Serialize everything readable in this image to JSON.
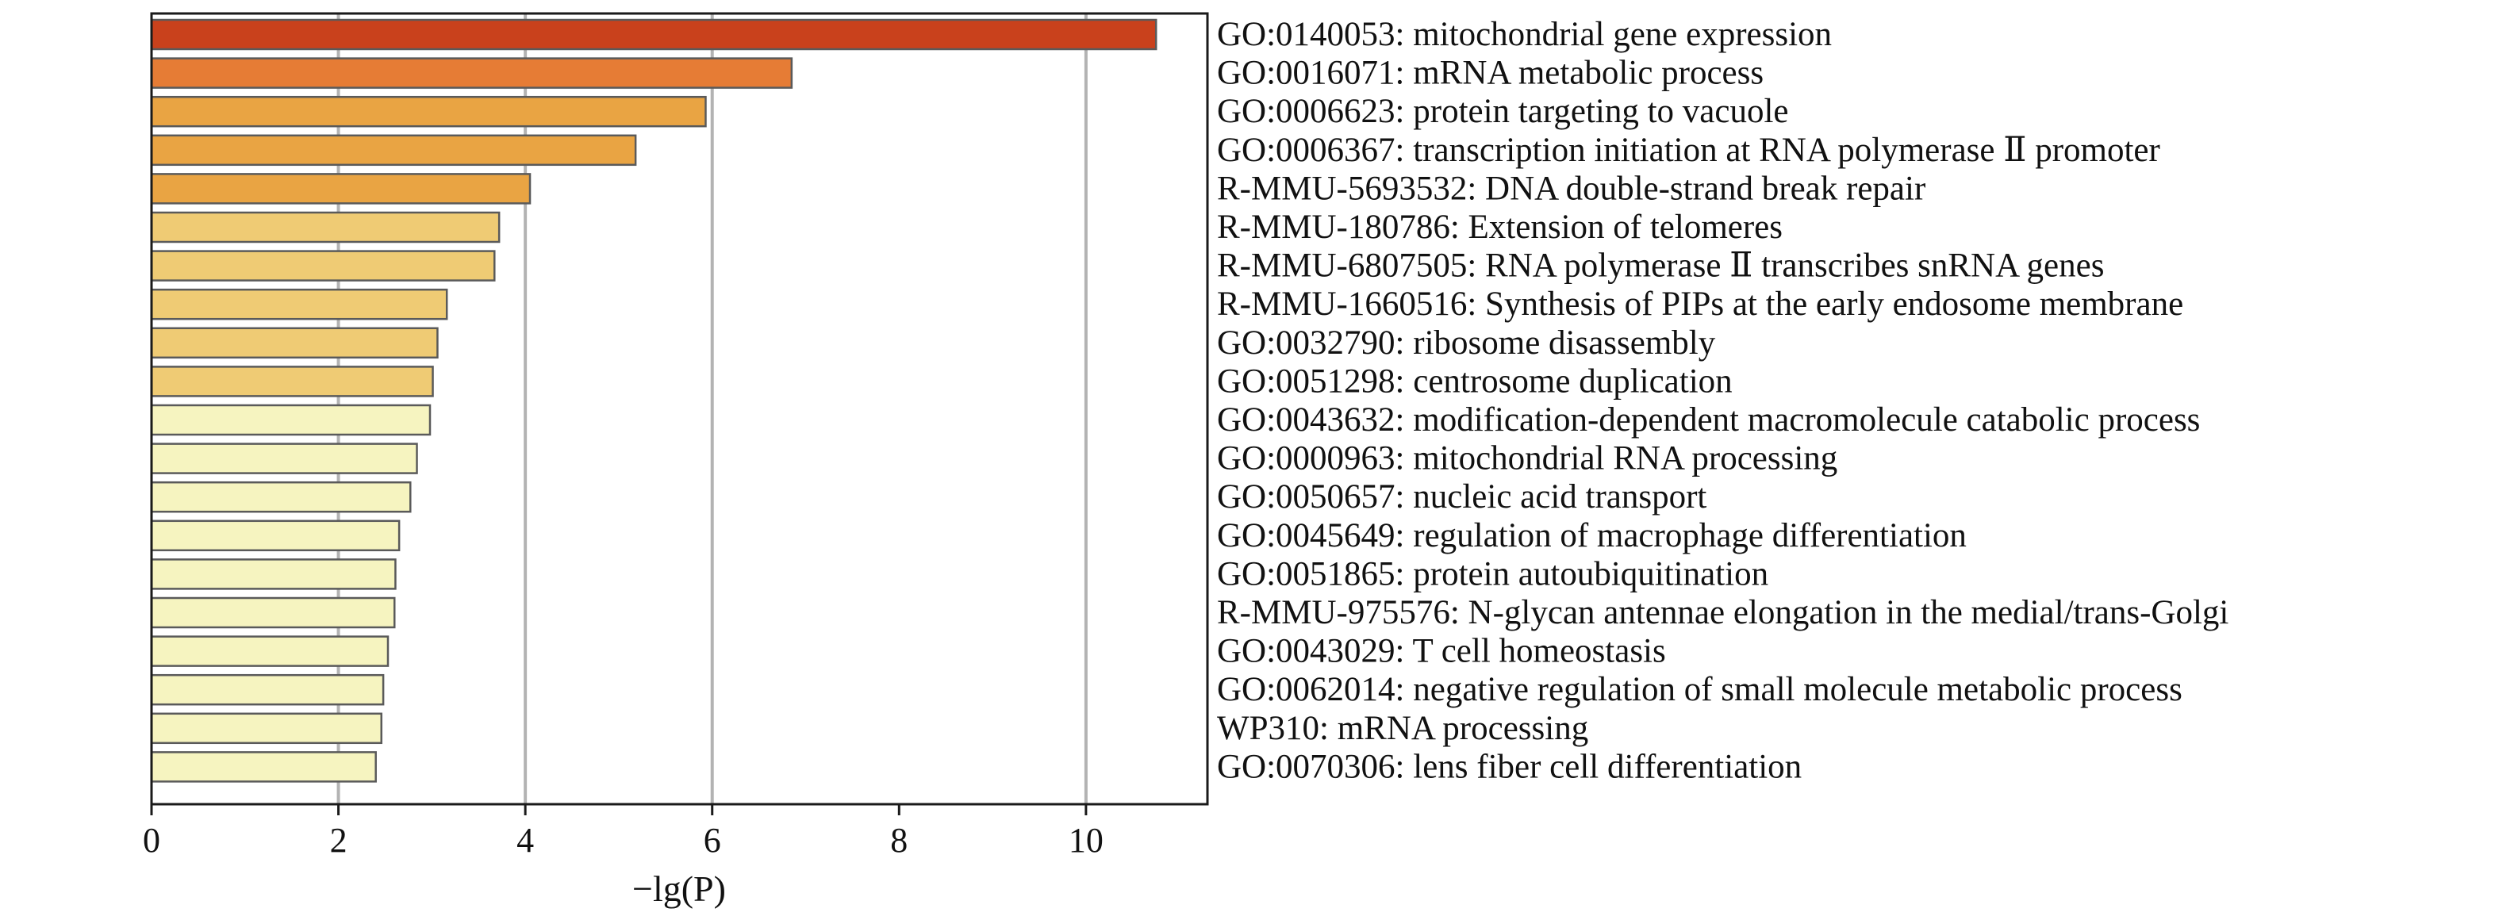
{
  "chart_data": {
    "type": "bar",
    "orientation": "horizontal",
    "xlabel": "−lg(P)",
    "xlim": [
      0,
      11.3
    ],
    "xticks": [
      0,
      2,
      4,
      6,
      8,
      10
    ],
    "grid": "vertical at x = 2, 4, 6, 10",
    "categories": [
      "GO:0140053: mitochondrial gene expression",
      "GO:0016071: mRNA metabolic process",
      "GO:0006623: protein targeting to vacuole",
      "GO:0006367: transcription initiation at RNA polymerase Ⅱ promoter",
      "R-MMU-5693532: DNA double-strand break repair",
      "R-MMU-180786: Extension of telomeres",
      "R-MMU-6807505: RNA polymerase Ⅱ transcribes snRNA genes",
      "R-MMU-1660516: Synthesis of PIPs at the early endosome membrane",
      "GO:0032790: ribosome disassembly",
      "GO:0051298: centrosome duplication",
      "GO:0043632: modification-dependent macromolecule catabolic process",
      "GO:0000963: mitochondrial RNA processing",
      "GO:0050657: nucleic acid transport",
      "GO:0045649: regulation of macrophage differentiation",
      "GO:0051865: protein autoubiquitination",
      "R-MMU-975576: N-glycan antennae elongation in the medial/trans-Golgi",
      "GO:0043029: T cell homeostasis",
      "GO:0062014: negative regulation of small molecule metabolic process",
      "WP310: mRNA processing",
      "GO:0070306: lens fiber cell differentiation"
    ],
    "values": [
      10.75,
      6.85,
      5.93,
      5.18,
      4.05,
      3.72,
      3.67,
      3.16,
      3.06,
      3.01,
      2.98,
      2.84,
      2.77,
      2.65,
      2.61,
      2.6,
      2.53,
      2.48,
      2.46,
      2.4
    ],
    "colors": [
      "#c9411c",
      "#e67c35",
      "#e9a443",
      "#e9a443",
      "#e9a443",
      "#efcb74",
      "#efcb74",
      "#efcb74",
      "#efcb74",
      "#efcb74",
      "#f6f4c0",
      "#f6f4c0",
      "#f6f4c0",
      "#f6f4c0",
      "#f6f4c0",
      "#f6f4c0",
      "#f6f4c0",
      "#f6f4c0",
      "#f6f4c0",
      "#f6f4c0"
    ]
  }
}
